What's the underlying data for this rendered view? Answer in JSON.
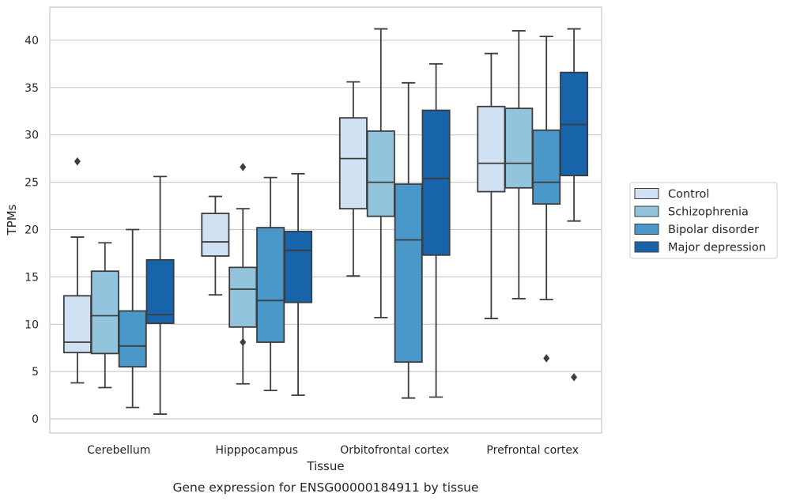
{
  "chart_data": {
    "type": "box",
    "title": "",
    "caption": "Gene expression for ENSG00000184911 by tissue",
    "xlabel": "Tissue",
    "ylabel": "TPMs",
    "ylim": [
      -1.5,
      43.5
    ],
    "yticks": [
      "0",
      "5",
      "10",
      "15",
      "20",
      "25",
      "30",
      "35",
      "40"
    ],
    "grid": "horizontal",
    "legend_position": "right",
    "categories": [
      "Cerebellum",
      "Hipppocampus",
      "Orbitofrontal cortex",
      "Prefrontal cortex"
    ],
    "series": [
      {
        "name": "Control",
        "color": "#cfe1f2",
        "boxes": [
          {
            "whislo": 3.8,
            "q1": 7.0,
            "med": 8.1,
            "q3": 13.0,
            "whishi": 19.2,
            "fliers": [
              27.2
            ]
          },
          {
            "whislo": 13.1,
            "q1": 17.2,
            "med": 18.7,
            "q3": 21.7,
            "whishi": 23.5,
            "fliers": []
          },
          {
            "whislo": 15.1,
            "q1": 22.2,
            "med": 27.5,
            "q3": 31.8,
            "whishi": 35.6,
            "fliers": []
          },
          {
            "whislo": 10.6,
            "q1": 24.0,
            "med": 27.0,
            "q3": 33.0,
            "whishi": 38.6,
            "fliers": []
          }
        ]
      },
      {
        "name": "Schizophrenia",
        "color": "#93c4de",
        "boxes": [
          {
            "whislo": 3.3,
            "q1": 6.9,
            "med": 10.9,
            "q3": 15.6,
            "whishi": 18.6,
            "fliers": []
          },
          {
            "whislo": 3.7,
            "q1": 9.7,
            "med": 13.7,
            "q3": 16.0,
            "whishi": 22.2,
            "fliers": [
              8.1,
              26.6
            ]
          },
          {
            "whislo": 10.7,
            "q1": 21.4,
            "med": 25.0,
            "q3": 30.4,
            "whishi": 41.2,
            "fliers": []
          },
          {
            "whislo": 12.7,
            "q1": 24.4,
            "med": 27.0,
            "q3": 32.8,
            "whishi": 41.0,
            "fliers": []
          }
        ]
      },
      {
        "name": "Bipolar disorder",
        "color": "#4a98c9",
        "boxes": [
          {
            "whislo": 1.2,
            "q1": 5.5,
            "med": 7.7,
            "q3": 11.4,
            "whishi": 20.0,
            "fliers": []
          },
          {
            "whislo": 3.0,
            "q1": 8.1,
            "med": 12.5,
            "q3": 20.2,
            "whishi": 25.5,
            "fliers": []
          },
          {
            "whislo": 2.2,
            "q1": 6.0,
            "med": 18.9,
            "q3": 24.8,
            "whishi": 35.5,
            "fliers": []
          },
          {
            "whislo": 12.6,
            "q1": 22.7,
            "med": 25.0,
            "q3": 30.5,
            "whishi": 40.4,
            "fliers": [
              6.4
            ]
          }
        ]
      },
      {
        "name": "Major depression",
        "color": "#1764ab",
        "boxes": [
          {
            "whislo": 0.5,
            "q1": 10.1,
            "med": 11.0,
            "q3": 16.8,
            "whishi": 25.6,
            "fliers": []
          },
          {
            "whislo": 2.5,
            "q1": 12.3,
            "med": 17.8,
            "q3": 19.8,
            "whishi": 25.9,
            "fliers": []
          },
          {
            "whislo": 2.3,
            "q1": 17.3,
            "med": 25.4,
            "q3": 32.6,
            "whishi": 37.5,
            "fliers": []
          },
          {
            "whislo": 20.9,
            "q1": 25.7,
            "med": 31.1,
            "q3": 36.6,
            "whishi": 41.2,
            "fliers": [
              4.4
            ]
          }
        ]
      }
    ]
  }
}
